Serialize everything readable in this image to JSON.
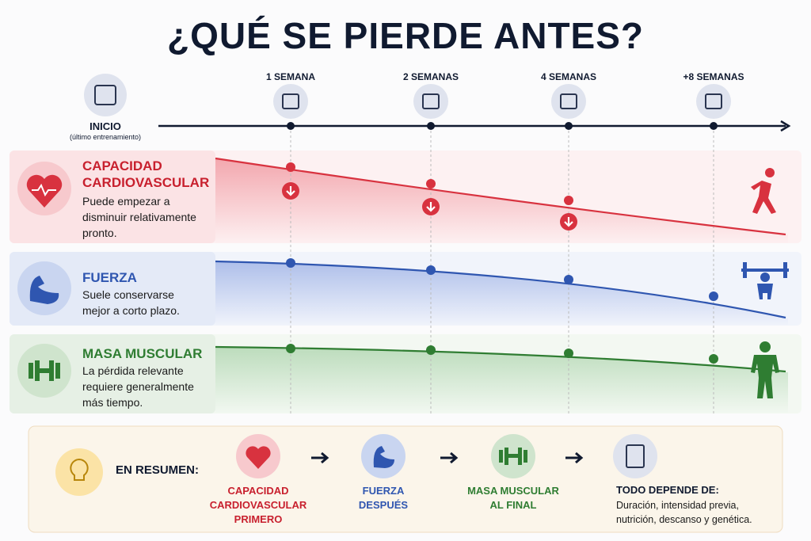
{
  "header": {
    "title": "¿QUÉ SE PIERDE ANTES?"
  },
  "timeline": {
    "start_label": "INICIO",
    "start_sub": "(último entrenamiento)",
    "milestones": [
      "1 SEMANA",
      "2 SEMANAS",
      "4 SEMANAS",
      "+8 SEMANAS"
    ]
  },
  "rows": [
    {
      "title": "CAPACIDAD CARDIOVASCULAR",
      "text": "Puede empezar a disminuir relativamente pronto."
    },
    {
      "title": "FUERZA",
      "text": "Suele conservarse mejor a corto plazo."
    },
    {
      "title": "MASA MUSCULAR",
      "text": "La pérdida relevante requiere generalmente más tiempo."
    }
  ],
  "summary": {
    "label": "EN RESUMEN:",
    "steps": [
      "CAPACIDAD CARDIOVASCULAR PRIMERO",
      "FUERZA DESPUÉS",
      "MASA MUSCULAR AL FINAL"
    ],
    "final_title": "TODO DEPENDE DE:",
    "final_text": "Duración, intensidad previa, nutrición, descanso y genética."
  }
}
